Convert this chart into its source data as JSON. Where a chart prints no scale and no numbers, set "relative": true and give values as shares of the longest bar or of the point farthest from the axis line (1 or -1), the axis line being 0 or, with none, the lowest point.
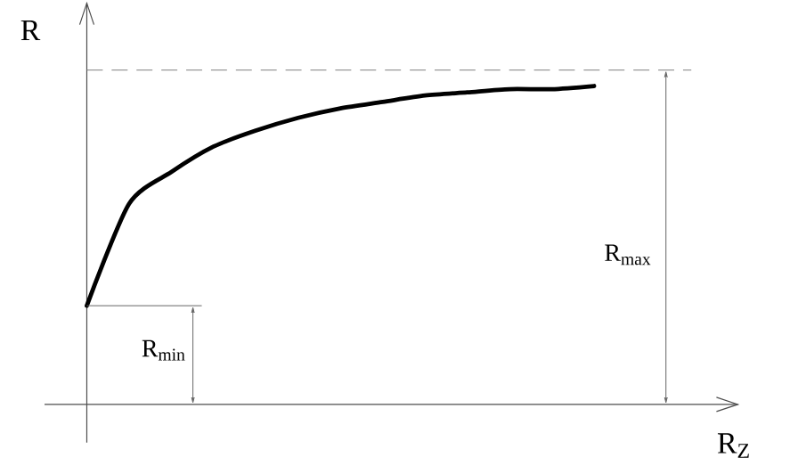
{
  "chart_data": {
    "type": "line",
    "relative": true,
    "xlabel": "R$_{Z}$",
    "ylabel": "R",
    "categories": [
      null,
      null,
      null,
      null,
      null,
      null,
      null,
      null,
      null,
      null,
      null,
      null,
      null
    ],
    "series": [
      {
        "color": "#000000",
        "values": [
          0.31,
          0.63,
          0.73,
          0.81,
          0.86,
          0.9,
          0.93,
          0.95,
          0.97,
          0.98,
          0.99,
          0.99,
          1
        ]
      }
    ],
    "ref_lines": [
      {
        "axis": "y",
        "value": 1.05,
        "color": "#808080",
        "line_style": "dashed"
      }
    ],
    "annotations": [
      "R$_{max}$",
      "R$_{min}$"
    ],
    "marker": "none",
    "line_style": "solid"
  }
}
